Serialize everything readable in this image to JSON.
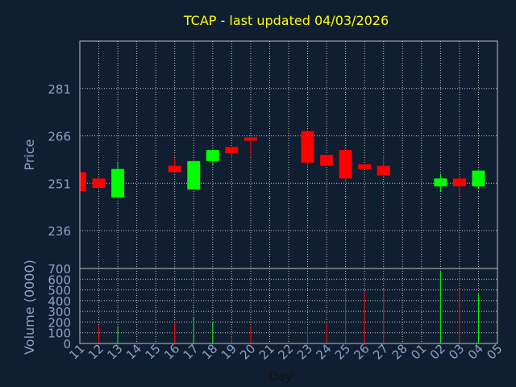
{
  "colors": {
    "background": "#0f1e30",
    "title": "#ffff00",
    "axis_text": "#8da2c8",
    "xlabel_text": "#111111",
    "frame": "#c0c0c0",
    "grid": "#c8c8c8",
    "up": "#00ff00",
    "down": "#ff0000"
  },
  "chart_data": {
    "type": "candlestick",
    "title": "TCAP - last updated 04/03/2026",
    "xlabel": "Day",
    "price_panel": {
      "ylabel": "Price",
      "ylim": [
        224,
        296
      ],
      "yticks": [
        236,
        251,
        266,
        281
      ],
      "grid": true
    },
    "volume_panel": {
      "ylabel": "Volume (0000)",
      "ylim": [
        0,
        700
      ],
      "yticks": [
        0,
        100,
        200,
        300,
        400,
        500,
        600,
        700
      ],
      "grid": true
    },
    "x_tick_labels": [
      "11",
      "12",
      "13",
      "14",
      "15",
      "16",
      "17",
      "18",
      "19",
      "20",
      "21",
      "22",
      "23",
      "24",
      "25",
      "26",
      "27",
      "28",
      "01",
      "02",
      "03",
      "04",
      "05"
    ],
    "candles": [
      {
        "x": 0,
        "open": 254.5,
        "close": 248.5,
        "high": 254.5,
        "low": 248.5,
        "volume": 0
      },
      {
        "x": 1,
        "open": 252.5,
        "close": 249.5,
        "high": 252.5,
        "low": 249.5,
        "volume": 170
      },
      {
        "x": 2,
        "open": 246.5,
        "close": 255.5,
        "high": 257.5,
        "low": 246.5,
        "volume": 160
      },
      {
        "x": 5,
        "open": 256.5,
        "close": 254.5,
        "high": 259.0,
        "low": 254.5,
        "volume": 190
      },
      {
        "x": 6,
        "open": 249.0,
        "close": 258.0,
        "high": 258.0,
        "low": 249.0,
        "volume": 240
      },
      {
        "x": 7,
        "open": 258.0,
        "close": 261.5,
        "high": 261.5,
        "low": 256.5,
        "volume": 200
      },
      {
        "x": 8,
        "open": 262.5,
        "close": 260.5,
        "high": 262.5,
        "low": 259.0,
        "volume": 65
      },
      {
        "x": 9,
        "open": 265.5,
        "close": 264.5,
        "high": 265.5,
        "low": 259.5,
        "volume": 155
      },
      {
        "x": 12,
        "open": 267.5,
        "close": 257.5,
        "high": 267.5,
        "low": 256.0,
        "volume": 155
      },
      {
        "x": 13,
        "open": 260.0,
        "close": 256.5,
        "high": 260.0,
        "low": 256.5,
        "volume": 190
      },
      {
        "x": 14,
        "open": 261.5,
        "close": 252.5,
        "high": 261.5,
        "low": 251.0,
        "volume": 480
      },
      {
        "x": 15,
        "open": 257.0,
        "close": 255.5,
        "high": 257.0,
        "low": 255.5,
        "volume": 490
      },
      {
        "x": 16,
        "open": 256.5,
        "close": 253.5,
        "high": 260.0,
        "low": 253.5,
        "volume": 510
      },
      {
        "x": 19,
        "open": 250.0,
        "close": 252.5,
        "high": 254.0,
        "low": 248.5,
        "volume": 680
      },
      {
        "x": 20,
        "open": 252.5,
        "close": 250.0,
        "high": 252.5,
        "low": 247.0,
        "volume": 510
      },
      {
        "x": 21,
        "open": 250.0,
        "close": 255.0,
        "high": 255.0,
        "low": 249.0,
        "volume": 460
      }
    ]
  }
}
